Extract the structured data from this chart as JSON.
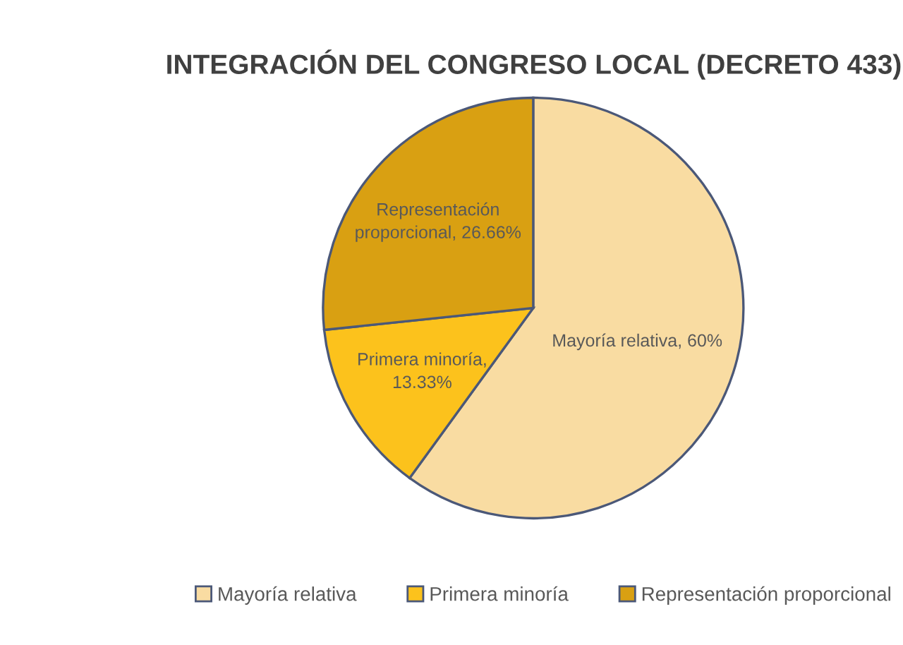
{
  "chart_data": {
    "type": "pie",
    "title": "INTEGRACIÓN DEL CONGRESO LOCAL (DECRETO 433)",
    "categories": [
      "Mayoría relativa",
      "Primera minoría",
      "Representación proporcional"
    ],
    "values": [
      60,
      13.33,
      26.66
    ],
    "colors": [
      "#f9dca2",
      "#fcc21c",
      "#d9a012"
    ],
    "value_labels": [
      "Mayoría relativa, 60%",
      "Primera minoría,\n13.33%",
      "Representación\nproporcional, 26.66%"
    ],
    "legend": "bottom"
  }
}
